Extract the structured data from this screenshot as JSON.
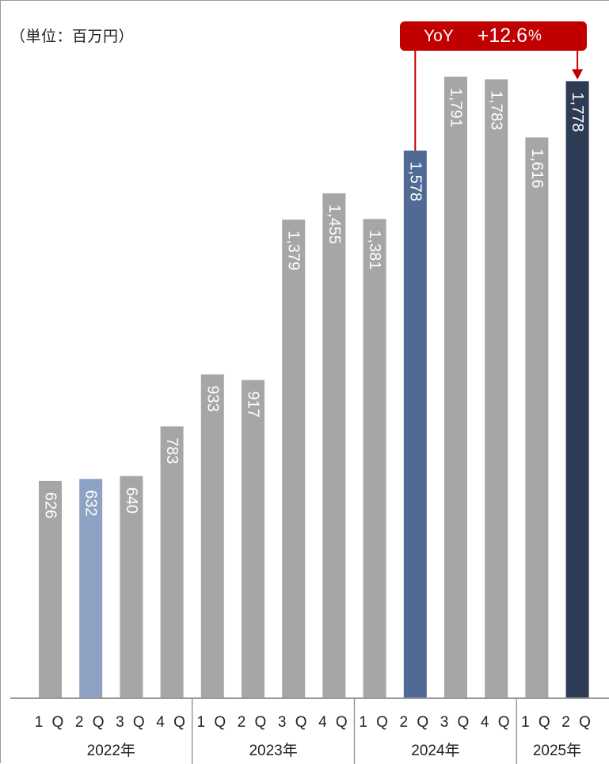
{
  "unit_label": "（単位：百万円）",
  "yoy": {
    "label": "YoY",
    "value": "+12.6",
    "unit": "%",
    "color": "#c00000"
  },
  "colors": {
    "default_bar": "#a6a6a6",
    "highlight_light": "#8ea2c3",
    "highlight_mid": "#506a96",
    "highlight_dark": "#2d3b55",
    "axis": "#9a9a9a"
  },
  "chart_data": {
    "type": "bar",
    "title": "",
    "xlabel": "",
    "ylabel": "",
    "unit": "百万円",
    "ylim": [
      0,
      1900
    ],
    "grid": false,
    "categories": [
      "1Q",
      "2Q",
      "3Q",
      "4Q",
      "1Q",
      "2Q",
      "3Q",
      "4Q",
      "1Q",
      "2Q",
      "3Q",
      "4Q",
      "1Q",
      "2Q"
    ],
    "groups": [
      {
        "label": "2022年",
        "count": 4
      },
      {
        "label": "2023年",
        "count": 4
      },
      {
        "label": "2024年",
        "count": 4
      },
      {
        "label": "2025年",
        "count": 2
      }
    ],
    "values": [
      626,
      632,
      640,
      783,
      933,
      917,
      1379,
      1455,
      1381,
      1578,
      1791,
      1783,
      1616,
      1778
    ],
    "value_labels": [
      "626",
      "632",
      "640",
      "783",
      "933",
      "917",
      "1,379",
      "1,455",
      "1,381",
      "1,578",
      "1,791",
      "1,783",
      "1,616",
      "1,778"
    ],
    "bar_styles": [
      "default",
      "highlight_light",
      "default",
      "default",
      "default",
      "default",
      "default",
      "default",
      "default",
      "highlight_mid",
      "default",
      "default",
      "default",
      "highlight_dark"
    ],
    "annotation": {
      "text": "YoY +12.6%",
      "from_index": 9,
      "to_index": 13
    }
  }
}
